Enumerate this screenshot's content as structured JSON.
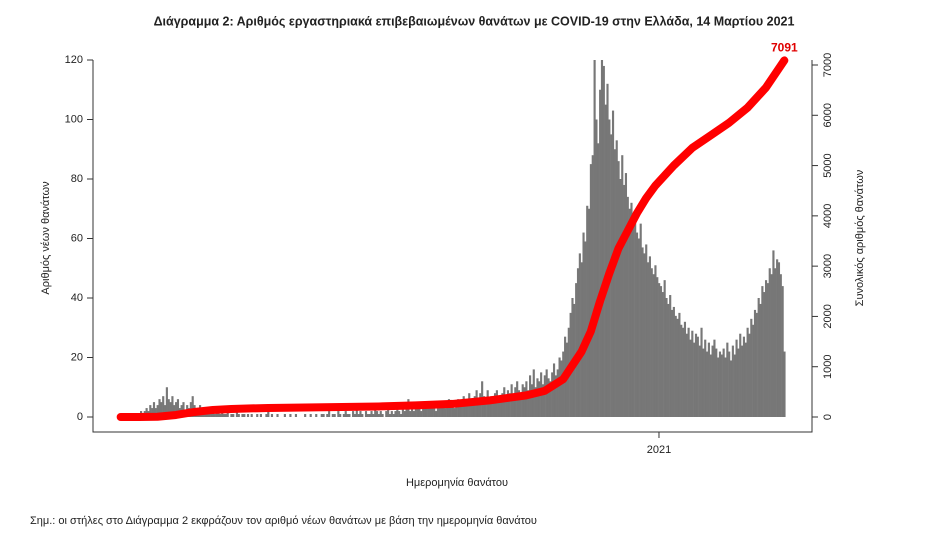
{
  "chart_data": {
    "type": "bar",
    "title": "Διάγραμμα 2: Αριθμός εργαστηριακά επιβεβαιωμένων θανάτων με COVID-19 στην Ελλάδα, 14 Μαρτίου 2021",
    "x_label": "Ημερομηνία θανάτου",
    "y_label": "Αριθμός νέων θανάτων",
    "y2_label": "Συνολικός αριθμός θανάτων",
    "note": "Σημ.: οι στήλες στο Διάγραμμα 2 εκφράζουν τον αριθμό νέων θανάτων με βάση την ημερομηνία θανάτου",
    "xlim": [
      -15,
      375
    ],
    "xticks": [
      {
        "value": 292,
        "label": "2021"
      }
    ],
    "ylim": [
      0,
      120
    ],
    "yticks": [
      0,
      20,
      40,
      60,
      80,
      100,
      120
    ],
    "y2lim": [
      0,
      7000
    ],
    "y2ticks": [
      0,
      1000,
      2000,
      3000,
      4000,
      5000,
      6000,
      7000
    ],
    "series": [
      {
        "type": "bar",
        "color": "#777777",
        "values": [
          0,
          0,
          0,
          0,
          0,
          0,
          1,
          0,
          1,
          1,
          1,
          2,
          1,
          2,
          3,
          2,
          4,
          3,
          5,
          3,
          4,
          6,
          5,
          7,
          4,
          10,
          6,
          5,
          7,
          4,
          5,
          6,
          3,
          4,
          5,
          2,
          4,
          3,
          5,
          7,
          4,
          3,
          2,
          4,
          3,
          2,
          3,
          1,
          2,
          3,
          2,
          1,
          3,
          2,
          1,
          2,
          1,
          1,
          2,
          0,
          1,
          1,
          0,
          2,
          1,
          0,
          1,
          1,
          0,
          1,
          0,
          1,
          0,
          0,
          1,
          0,
          1,
          0,
          0,
          1,
          2,
          0,
          1,
          0,
          0,
          1,
          0,
          0,
          0,
          1,
          0,
          0,
          1,
          0,
          0,
          1,
          0,
          0,
          0,
          0,
          1,
          0,
          0,
          1,
          0,
          0,
          1,
          0,
          0,
          1,
          1,
          0,
          1,
          2,
          0,
          1,
          1,
          0,
          2,
          1,
          0,
          1,
          2,
          1,
          1,
          0,
          2,
          1,
          3,
          1,
          2,
          1,
          0,
          2,
          1,
          1,
          2,
          1,
          3,
          2,
          1,
          2,
          1,
          0,
          2,
          3,
          1,
          2,
          1,
          2,
          3,
          2,
          1,
          4,
          2,
          3,
          6,
          2,
          3,
          2,
          4,
          3,
          5,
          2,
          3,
          4,
          3,
          5,
          4,
          3,
          4,
          2,
          5,
          3,
          4,
          5,
          3,
          4,
          6,
          5,
          4,
          3,
          5,
          6,
          4,
          5,
          7,
          5,
          6,
          8,
          5,
          6,
          7,
          9,
          6,
          8,
          12,
          7,
          6,
          9,
          5,
          7,
          6,
          8,
          9,
          7,
          6,
          8,
          10,
          7,
          9,
          8,
          11,
          7,
          10,
          12,
          9,
          8,
          11,
          10,
          12,
          9,
          14,
          11,
          16,
          10,
          13,
          12,
          15,
          11,
          14,
          16,
          13,
          12,
          15,
          18,
          14,
          16,
          20,
          19,
          22,
          27,
          25,
          30,
          35,
          40,
          38,
          45,
          50,
          55,
          52,
          62,
          59,
          71,
          70,
          85,
          88,
          120,
          100,
          92,
          110,
          120,
          118,
          105,
          112,
          100,
          95,
          103,
          90,
          93,
          86,
          80,
          88,
          78,
          82,
          74,
          70,
          72,
          66,
          68,
          62,
          60,
          65,
          57,
          55,
          58,
          52,
          54,
          50,
          48,
          51,
          47,
          45,
          44,
          42,
          46,
          40,
          38,
          41,
          36,
          37,
          34,
          33,
          35,
          31,
          30,
          32,
          28,
          30,
          26,
          29,
          25,
          28,
          27,
          24,
          30,
          23,
          26,
          22,
          25,
          21,
          24,
          26,
          23,
          20,
          22,
          21,
          23,
          20,
          25,
          22,
          19,
          24,
          21,
          26,
          23,
          28,
          24,
          27,
          25,
          30,
          28,
          33,
          31,
          36,
          35,
          40,
          38,
          44,
          42,
          46,
          45,
          50,
          48,
          56,
          50,
          53,
          52,
          48,
          44,
          22
        ]
      },
      {
        "type": "line",
        "axis": "y2",
        "color": "#ff0000",
        "x": [
          0,
          10,
          20,
          30,
          40,
          50,
          60,
          80,
          100,
          120,
          140,
          160,
          180,
          200,
          220,
          230,
          240,
          250,
          255,
          260,
          265,
          270,
          275,
          280,
          285,
          290,
          300,
          310,
          320,
          330,
          340,
          350,
          360
        ],
        "values": [
          0,
          0,
          5,
          40,
          100,
          140,
          160,
          180,
          190,
          200,
          210,
          230,
          260,
          330,
          430,
          520,
          750,
          1300,
          1700,
          2300,
          2850,
          3350,
          3700,
          4050,
          4350,
          4600,
          5000,
          5350,
          5600,
          5850,
          6150,
          6550,
          7091
        ],
        "value_labels": [
          null,
          null,
          null,
          null,
          null,
          null,
          null,
          null,
          null,
          null,
          null,
          null,
          null,
          null,
          null,
          null,
          null,
          null,
          null,
          null,
          null,
          null,
          null,
          null,
          null,
          null,
          null,
          null,
          null,
          null,
          null,
          null,
          "7091"
        ]
      }
    ]
  }
}
